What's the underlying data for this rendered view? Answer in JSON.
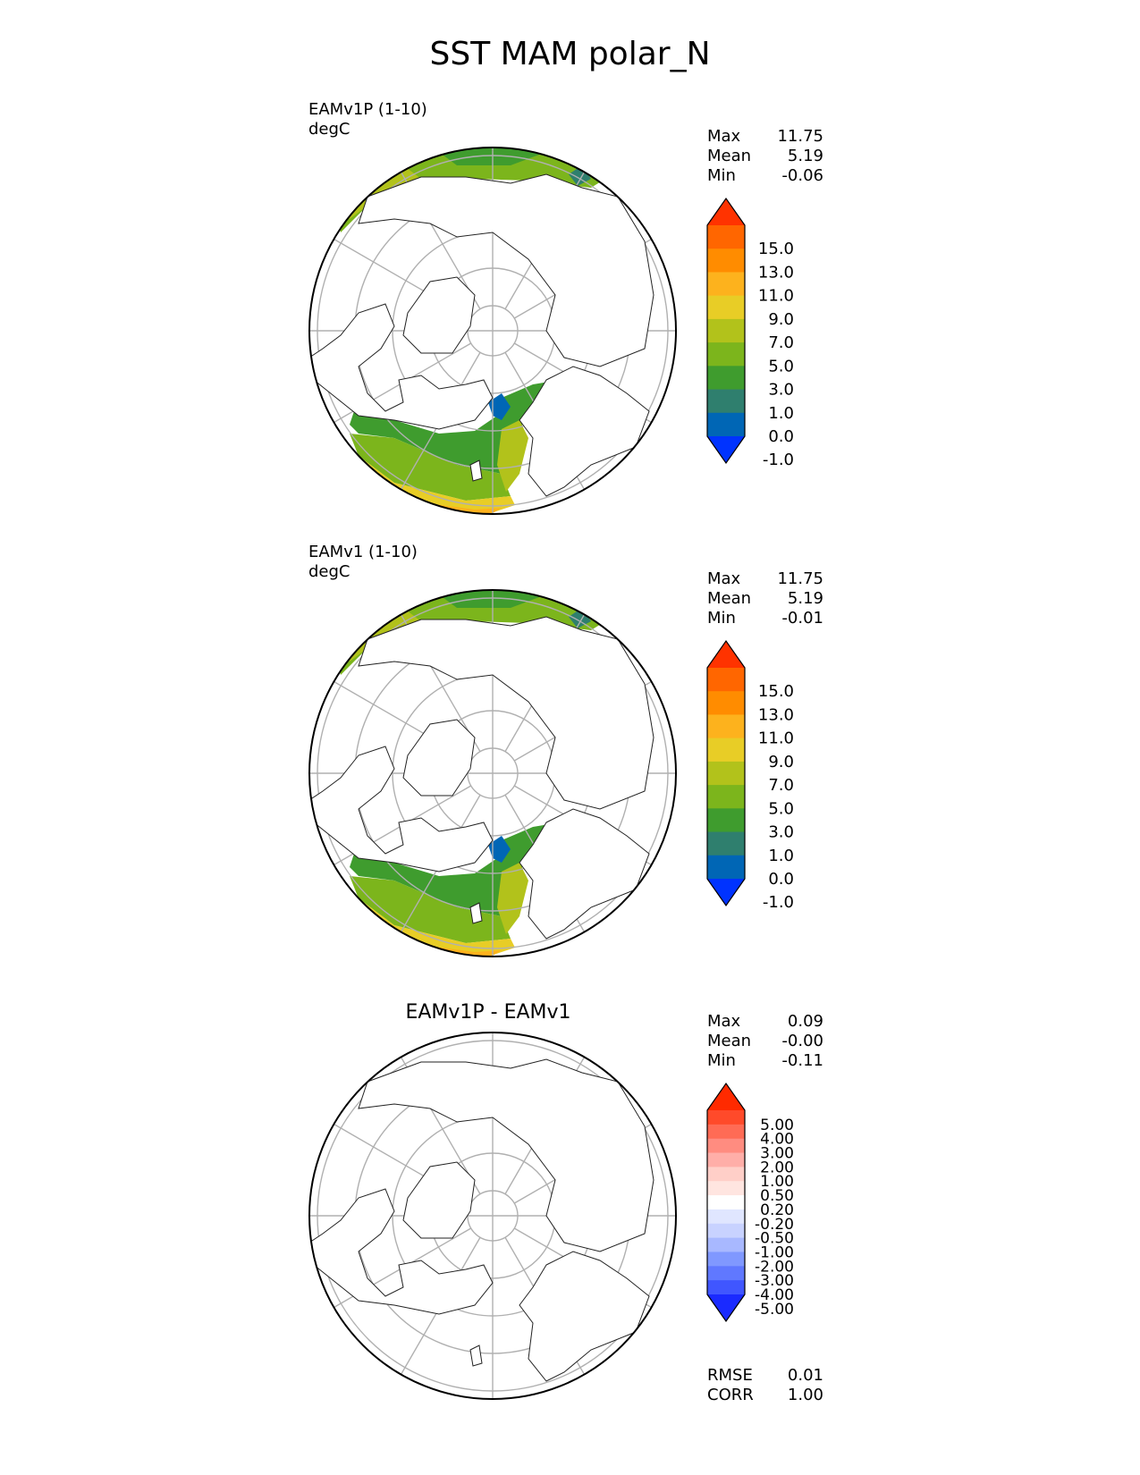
{
  "figure": {
    "title": "SST MAM polar_N"
  },
  "chart_data": [
    {
      "type": "heatmap",
      "projection": "north-polar-stereographic",
      "name": "EAMv1P (1-10)",
      "units": "degC",
      "stats": [
        {
          "label": "Max",
          "value": "11.75"
        },
        {
          "label": "Mean",
          "value": "5.19"
        },
        {
          "label": "Min",
          "value": "-0.06"
        }
      ],
      "colorbar": {
        "ticks": [
          "15.0",
          "13.0",
          "11.0",
          "9.0",
          "7.0",
          "5.0",
          "3.0",
          "1.0",
          "0.0",
          "-1.0"
        ],
        "colors": [
          "#ff3300",
          "#ff6600",
          "#ff8c00",
          "#fdb21d",
          "#e8cd26",
          "#b2c21b",
          "#7cb51c",
          "#3f9c2e",
          "#2f7f6e",
          "#0066b5",
          "#0033ff"
        ],
        "extend": "both"
      }
    },
    {
      "type": "heatmap",
      "projection": "north-polar-stereographic",
      "name": "EAMv1 (1-10)",
      "units": "degC",
      "stats": [
        {
          "label": "Max",
          "value": "11.75"
        },
        {
          "label": "Mean",
          "value": "5.19"
        },
        {
          "label": "Min",
          "value": "-0.01"
        }
      ],
      "colorbar": {
        "ticks": [
          "15.0",
          "13.0",
          "11.0",
          "9.0",
          "7.0",
          "5.0",
          "3.0",
          "1.0",
          "0.0",
          "-1.0"
        ],
        "colors": [
          "#ff3300",
          "#ff6600",
          "#ff8c00",
          "#fdb21d",
          "#e8cd26",
          "#b2c21b",
          "#7cb51c",
          "#3f9c2e",
          "#2f7f6e",
          "#0066b5",
          "#0033ff"
        ],
        "extend": "both"
      }
    },
    {
      "type": "heatmap",
      "projection": "north-polar-stereographic",
      "title": "EAMv1P - EAMv1",
      "stats": [
        {
          "label": "Max",
          "value": "0.09"
        },
        {
          "label": "Mean",
          "value": "-0.00"
        },
        {
          "label": "Min",
          "value": "-0.11"
        }
      ],
      "colorbar": {
        "ticks": [
          "5.00",
          "4.00",
          "3.00",
          "2.00",
          "1.00",
          "0.50",
          "0.20",
          "-0.20",
          "-0.50",
          "-1.00",
          "-2.00",
          "-3.00",
          "-4.00",
          "-5.00"
        ],
        "colors": [
          "#ff2a00",
          "#ff4a2a",
          "#ff6b55",
          "#ff8c80",
          "#ffaea8",
          "#ffcfc8",
          "#ffe5e0",
          "#ffffff",
          "#e0e6ff",
          "#c8d2ff",
          "#a8b8ff",
          "#8098ff",
          "#6078ff",
          "#4056ff",
          "#1a2aff"
        ],
        "extend": "both"
      },
      "metrics": [
        {
          "label": "RMSE",
          "value": "0.01"
        },
        {
          "label": "CORR",
          "value": "1.00"
        }
      ]
    }
  ]
}
